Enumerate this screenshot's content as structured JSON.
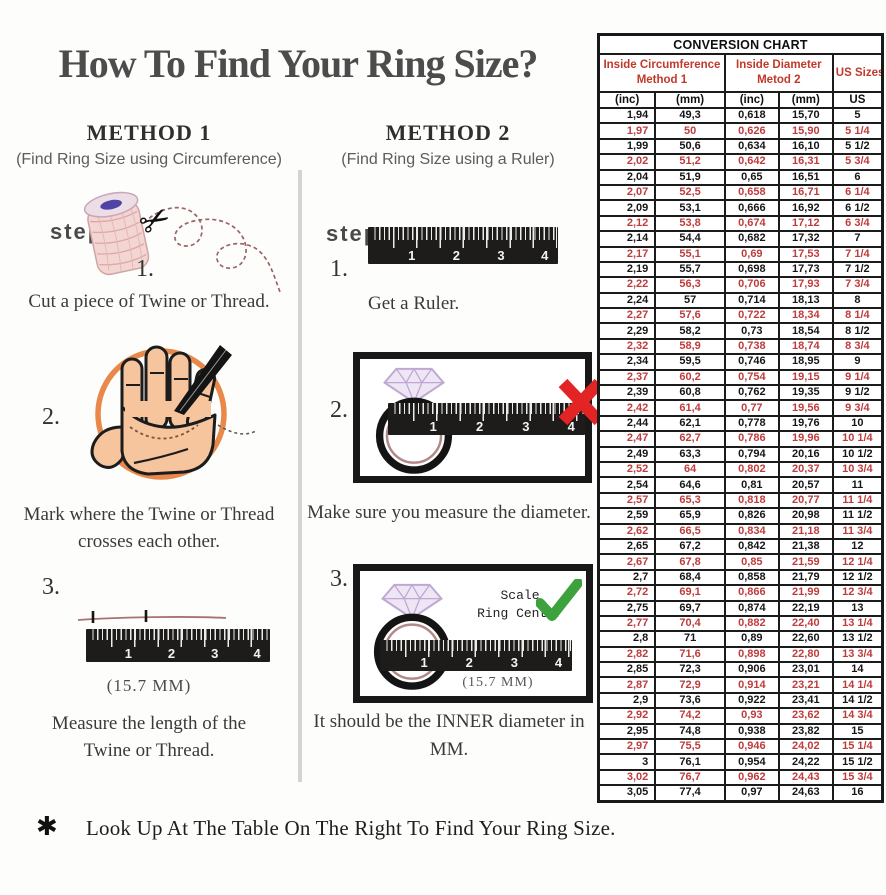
{
  "page": {
    "title": "How To Find Your Ring Size?",
    "footnote_symbol": "✱",
    "footnote_text": "Look Up At The Table On The Right To Find Your Ring Size."
  },
  "ruler": {
    "numbers": [
      "1",
      "2",
      "3",
      "4"
    ]
  },
  "method1": {
    "heading": "METHOD 1",
    "subheading": "(Find Ring Size using Circumference)",
    "step_label": "step",
    "step1_num": "1.",
    "step1_text": "Cut a piece of  Twine or Thread.",
    "step2_num": "2.",
    "step2_text": "Mark where the Twine or Thread crosses each other.",
    "step3_num": "3.",
    "step3_measurement": "(15.7 MM)",
    "step3_text": "Measure the length of the Twine or Thread."
  },
  "method2": {
    "heading": "METHOD 2",
    "subheading": "(Find Ring Size using a Ruler)",
    "step_label": "step",
    "step1_num": "1.",
    "step1_text": "Get a Ruler.",
    "step2_num": "2.",
    "step2_text": "Make sure you measure the diameter.",
    "step3_num": "3.",
    "scale_line1": "Scale",
    "scale_line2": "Ring Center",
    "inner_measurement": "(15.7 MM)",
    "step3_text": "It should be the INNER diameter in MM."
  },
  "table": {
    "title": "CONVERSION CHART",
    "groups": [
      {
        "line1": "Inside Circumference",
        "line2": "Method 1"
      },
      {
        "line1": "Inside Diameter",
        "line2": "Metod 2"
      },
      {
        "line1": "US Sizes",
        "line2": ""
      }
    ],
    "col_headers": [
      "(inc)",
      "(mm)",
      "(inc)",
      "(mm)",
      "US"
    ],
    "rows": [
      [
        "1,94",
        "49,3",
        "0,618",
        "15,70",
        "5"
      ],
      [
        "1,97",
        "50",
        "0,626",
        "15,90",
        "5 1/4"
      ],
      [
        "1,99",
        "50,6",
        "0,634",
        "16,10",
        "5 1/2"
      ],
      [
        "2,02",
        "51,2",
        "0,642",
        "16,31",
        "5 3/4"
      ],
      [
        "2,04",
        "51,9",
        "0,65",
        "16,51",
        "6"
      ],
      [
        "2,07",
        "52,5",
        "0,658",
        "16,71",
        "6 1/4"
      ],
      [
        "2,09",
        "53,1",
        "0,666",
        "16,92",
        "6 1/2"
      ],
      [
        "2,12",
        "53,8",
        "0,674",
        "17,12",
        "6 3/4"
      ],
      [
        "2,14",
        "54,4",
        "0,682",
        "17,32",
        "7"
      ],
      [
        "2,17",
        "55,1",
        "0,69",
        "17,53",
        "7 1/4"
      ],
      [
        "2,19",
        "55,7",
        "0,698",
        "17,73",
        "7 1/2"
      ],
      [
        "2,22",
        "56,3",
        "0,706",
        "17,93",
        "7 3/4"
      ],
      [
        "2,24",
        "57",
        "0,714",
        "18,13",
        "8"
      ],
      [
        "2,27",
        "57,6",
        "0,722",
        "18,34",
        "8 1/4"
      ],
      [
        "2,29",
        "58,2",
        "0,73",
        "18,54",
        "8 1/2"
      ],
      [
        "2,32",
        "58,9",
        "0,738",
        "18,74",
        "8 3/4"
      ],
      [
        "2,34",
        "59,5",
        "0,746",
        "18,95",
        "9"
      ],
      [
        "2,37",
        "60,2",
        "0,754",
        "19,15",
        "9 1/4"
      ],
      [
        "2,39",
        "60,8",
        "0,762",
        "19,35",
        "9 1/2"
      ],
      [
        "2,42",
        "61,4",
        "0,77",
        "19,56",
        "9 3/4"
      ],
      [
        "2,44",
        "62,1",
        "0,778",
        "19,76",
        "10"
      ],
      [
        "2,47",
        "62,7",
        "0,786",
        "19,96",
        "10 1/4"
      ],
      [
        "2,49",
        "63,3",
        "0,794",
        "20,16",
        "10 1/2"
      ],
      [
        "2,52",
        "64",
        "0,802",
        "20,37",
        "10 3/4"
      ],
      [
        "2,54",
        "64,6",
        "0,81",
        "20,57",
        "11"
      ],
      [
        "2,57",
        "65,3",
        "0,818",
        "20,77",
        "11 1/4"
      ],
      [
        "2,59",
        "65,9",
        "0,826",
        "20,98",
        "11 1/2"
      ],
      [
        "2,62",
        "66,5",
        "0,834",
        "21,18",
        "11 3/4"
      ],
      [
        "2,65",
        "67,2",
        "0,842",
        "21,38",
        "12"
      ],
      [
        "2,67",
        "67,8",
        "0,85",
        "21,59",
        "12 1/4"
      ],
      [
        "2,7",
        "68,4",
        "0,858",
        "21,79",
        "12 1/2"
      ],
      [
        "2,72",
        "69,1",
        "0,866",
        "21,99",
        "12 3/4"
      ],
      [
        "2,75",
        "69,7",
        "0,874",
        "22,19",
        "13"
      ],
      [
        "2,77",
        "70,4",
        "0,882",
        "22,40",
        "13 1/4"
      ],
      [
        "2,8",
        "71",
        "0,89",
        "22,60",
        "13 1/2"
      ],
      [
        "2,82",
        "71,6",
        "0,898",
        "22,80",
        "13 3/4"
      ],
      [
        "2,85",
        "72,3",
        "0,906",
        "23,01",
        "14"
      ],
      [
        "2,87",
        "72,9",
        "0,914",
        "23,21",
        "14 1/4"
      ],
      [
        "2,9",
        "73,6",
        "0,922",
        "23,41",
        "14 1/2"
      ],
      [
        "2,92",
        "74,2",
        "0,93",
        "23,62",
        "14 3/4"
      ],
      [
        "2,95",
        "74,8",
        "0,938",
        "23,82",
        "15"
      ],
      [
        "2,97",
        "75,5",
        "0,946",
        "24,02",
        "15 1/4"
      ],
      [
        "3",
        "76,1",
        "0,954",
        "24,22",
        "15 1/2"
      ],
      [
        "3,02",
        "76,7",
        "0,962",
        "24,43",
        "15 3/4"
      ],
      [
        "3,05",
        "77,4",
        "0,97",
        "24,63",
        "16"
      ]
    ]
  },
  "colors": {
    "red_text": "#bf3c3c",
    "header_red": "#c0392b",
    "green_check": "#3da23d",
    "red_x": "#e32424",
    "orange_circle": "#e8884a",
    "skin": "#f6c49d"
  }
}
